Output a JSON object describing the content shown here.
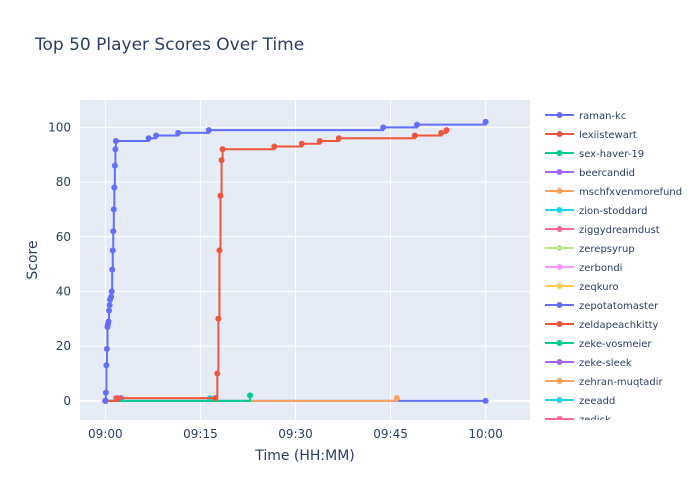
{
  "chart_data": {
    "type": "line",
    "title": "Top 50 Player Scores Over Time",
    "xlabel": "Time (HH:MM)",
    "ylabel": "Score",
    "x_axis_unit": "time",
    "xlim": [
      "08:56",
      "10:07"
    ],
    "ylim": [
      -7,
      110
    ],
    "x_ticks": [
      "09:00",
      "09:15",
      "09:30",
      "09:45",
      "10:00"
    ],
    "y_ticks": [
      0,
      20,
      40,
      60,
      80,
      100
    ],
    "grid": true,
    "legend_position": "right",
    "line_shape": "step",
    "colors": {
      "background": "#E5ECF6",
      "title": "#2a3f5f",
      "text": "#2a3f5f"
    },
    "series": [
      {
        "name": "raman-kc",
        "color": "#636EFA",
        "points": [
          [
            "09:00:00",
            0
          ],
          [
            "09:00:05",
            3
          ],
          [
            "09:00:10",
            13
          ],
          [
            "09:00:15",
            19
          ],
          [
            "09:00:20",
            27
          ],
          [
            "09:00:25",
            28
          ],
          [
            "09:00:30",
            29
          ],
          [
            "09:00:35",
            33
          ],
          [
            "09:00:40",
            35
          ],
          [
            "09:00:45",
            37
          ],
          [
            "09:00:55",
            38
          ],
          [
            "09:01:00",
            40
          ],
          [
            "09:01:05",
            48
          ],
          [
            "09:01:10",
            55
          ],
          [
            "09:01:15",
            62
          ],
          [
            "09:01:20",
            70
          ],
          [
            "09:01:25",
            78
          ],
          [
            "09:01:30",
            86
          ],
          [
            "09:01:35",
            92
          ],
          [
            "09:01:40",
            95
          ],
          [
            "09:06:50",
            96
          ],
          [
            "09:08:00",
            97
          ],
          [
            "09:11:30",
            98
          ],
          [
            "09:16:20",
            99
          ],
          [
            "09:43:50",
            100
          ],
          [
            "09:49:10",
            101
          ],
          [
            "10:00:00",
            102
          ]
        ]
      },
      {
        "name": "lexiistewart",
        "color": "#EF553B",
        "points": [
          [
            "09:00:00",
            0
          ],
          [
            "09:02:00",
            1
          ],
          [
            "09:17:20",
            1
          ],
          [
            "09:17:40",
            10
          ],
          [
            "09:17:50",
            30
          ],
          [
            "09:18:00",
            55
          ],
          [
            "09:18:10",
            75
          ],
          [
            "09:18:20",
            88
          ],
          [
            "09:18:30",
            92
          ],
          [
            "09:26:40",
            93
          ],
          [
            "09:31:00",
            94
          ],
          [
            "09:33:50",
            95
          ],
          [
            "09:36:50",
            96
          ],
          [
            "09:48:50",
            97
          ],
          [
            "09:53:00",
            98
          ],
          [
            "09:53:50",
            99
          ]
        ]
      },
      {
        "name": "sex-haver-19",
        "color": "#00CC96",
        "points": [
          [
            "09:00:00",
            0
          ],
          [
            "09:22:50",
            2
          ]
        ]
      },
      {
        "name": "beercandid",
        "color": "#AB63FA",
        "points": [
          [
            "09:00:00",
            0
          ],
          [
            "09:02:30",
            1
          ]
        ]
      },
      {
        "name": "mschfxvenmorefund",
        "color": "#FFA15A",
        "points": [
          [
            "09:00:00",
            0
          ],
          [
            "09:46:00",
            1
          ]
        ]
      },
      {
        "name": "zion-stoddard",
        "color": "#19D3F3",
        "points": [
          [
            "09:00:00",
            0
          ],
          [
            "09:16:30",
            1
          ]
        ]
      },
      {
        "name": "ziggydreamdust",
        "color": "#FF6692",
        "points": [
          [
            "09:00:00",
            0
          ],
          [
            "09:01:40",
            1
          ]
        ]
      },
      {
        "name": "zerepsyrup",
        "color": "#B6E880",
        "points": [
          [
            "09:00:00",
            0
          ]
        ]
      },
      {
        "name": "zerbondi",
        "color": "#FF97FF",
        "points": [
          [
            "09:00:00",
            0
          ]
        ]
      },
      {
        "name": "zeqkuro",
        "color": "#FECB52",
        "points": [
          [
            "09:00:00",
            0
          ]
        ]
      },
      {
        "name": "zepotatomaster",
        "color": "#636EFA",
        "points": [
          [
            "09:00:00",
            0
          ],
          [
            "10:00:00",
            0
          ]
        ]
      },
      {
        "name": "zeldapeachkitty",
        "color": "#EF553B",
        "points": [
          [
            "09:00:00",
            0
          ]
        ]
      },
      {
        "name": "zeke-vosmeier",
        "color": "#00CC96",
        "points": [
          [
            "09:00:00",
            0
          ]
        ]
      },
      {
        "name": "zeke-sleek",
        "color": "#AB63FA",
        "points": [
          [
            "09:00:00",
            0
          ]
        ]
      },
      {
        "name": "zehran-muqtadir",
        "color": "#FFA15A",
        "points": [
          [
            "09:00:00",
            0
          ]
        ]
      },
      {
        "name": "zeeadd",
        "color": "#19D3F3",
        "points": [
          [
            "09:00:00",
            0
          ]
        ]
      },
      {
        "name": "zedick",
        "color": "#FF6692",
        "points": [
          [
            "09:00:00",
            0
          ]
        ]
      }
    ]
  }
}
